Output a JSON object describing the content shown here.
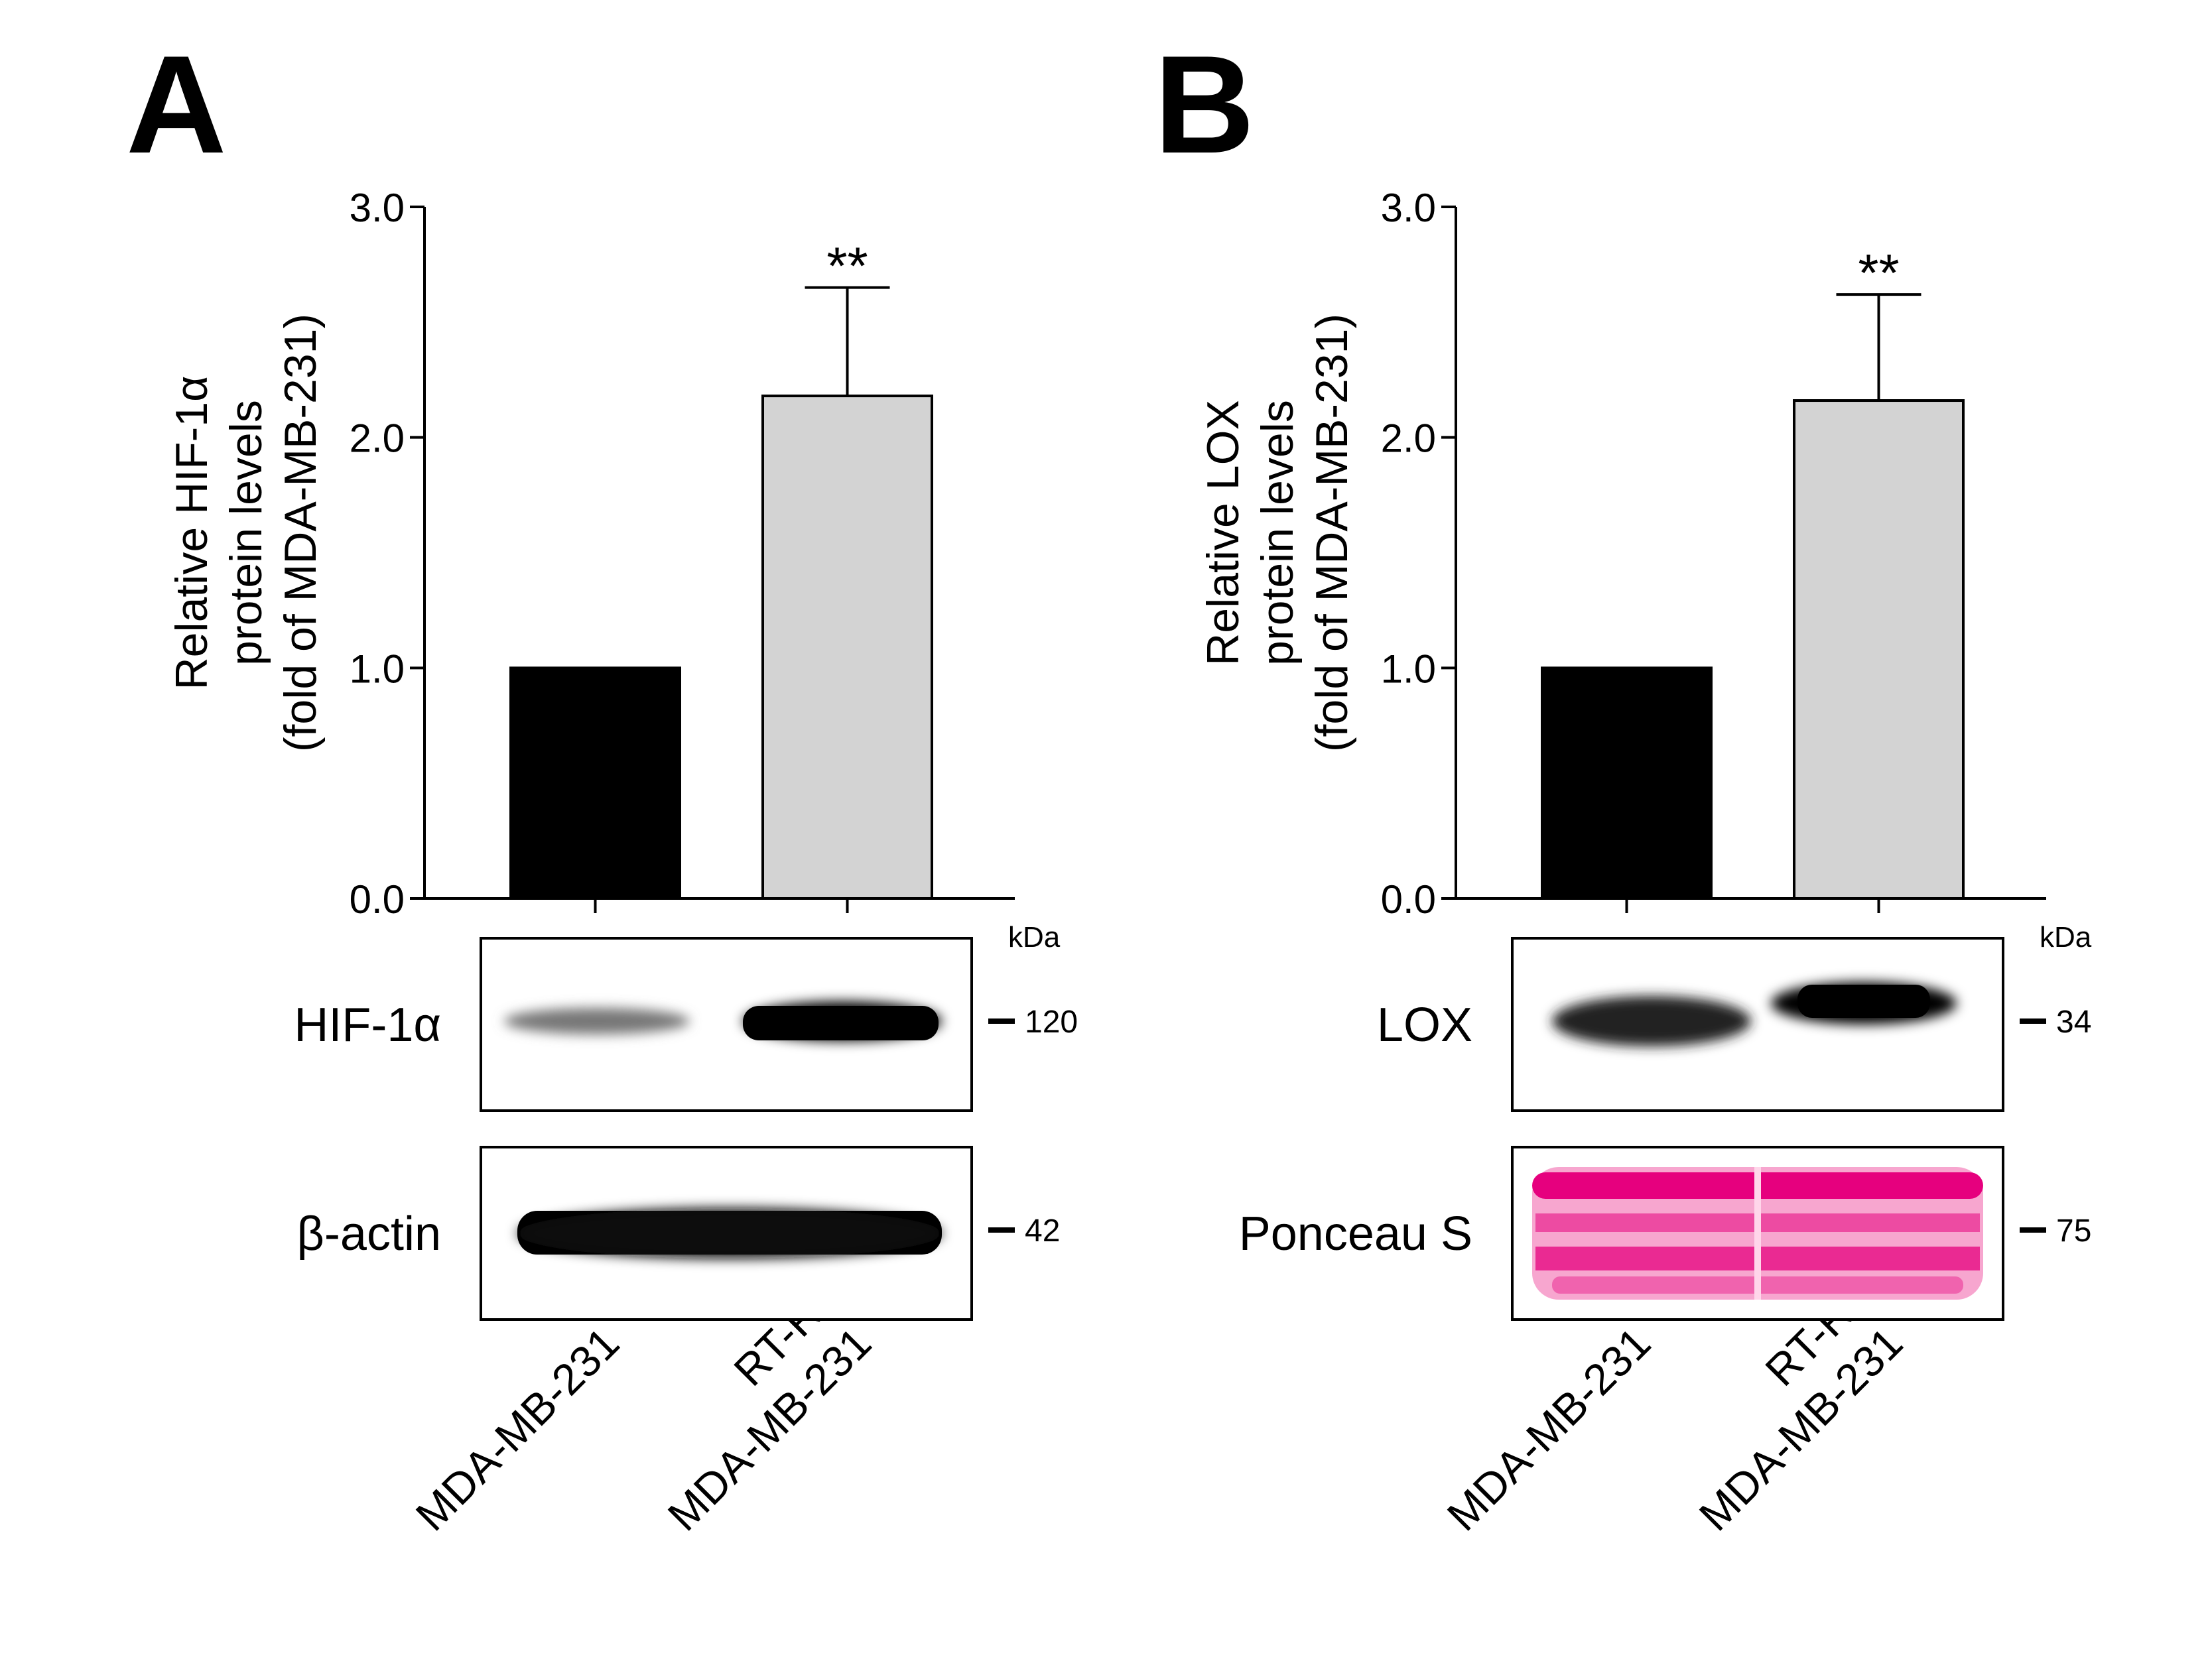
{
  "chart_data": [
    {
      "panel": "A",
      "type": "bar",
      "ylabel_lines": [
        "Relative HIF-1α",
        "protein levels",
        "(fold of MDA-MB-231)"
      ],
      "yticks": [
        "0.0",
        "1.0",
        "2.0",
        "3.0"
      ],
      "ylim": [
        0,
        3.0
      ],
      "categories": [
        "MDA-MB-231",
        "RT-R-MDA-MB-231"
      ],
      "category_lines": [
        [
          "MDA-MB-231"
        ],
        [
          "RT-R-",
          "MDA-MB-231"
        ]
      ],
      "values": [
        1.0,
        2.18
      ],
      "errors": [
        0,
        0.47
      ],
      "bar_colors": [
        "#000000",
        "#d3d3d3"
      ],
      "significance": [
        "",
        "**"
      ],
      "blots": [
        {
          "label": "HIF-1α",
          "kda": "120",
          "style": "bands-grey"
        },
        {
          "label": "β-actin",
          "kda": "42",
          "style": "bands-black"
        }
      ],
      "kda_label": "kDa"
    },
    {
      "panel": "B",
      "type": "bar",
      "ylabel_lines": [
        "Relative LOX",
        "protein levels",
        "(fold of MDA-MB-231)"
      ],
      "yticks": [
        "0.0",
        "1.0",
        "2.0",
        "3.0"
      ],
      "ylim": [
        0,
        3.0
      ],
      "categories": [
        "MDA-MB-231",
        "RT-R-MDA-MB-231"
      ],
      "category_lines": [
        [
          "MDA-MB-231"
        ],
        [
          "RT-R-",
          "MDA-MB-231"
        ]
      ],
      "values": [
        1.0,
        2.16
      ],
      "errors": [
        0,
        0.46
      ],
      "bar_colors": [
        "#000000",
        "#d3d3d3"
      ],
      "significance": [
        "",
        "**"
      ],
      "blots": [
        {
          "label": "LOX",
          "kda": "34",
          "style": "bands-black"
        },
        {
          "label": "Ponceau S",
          "kda": "75",
          "style": "ponceau"
        }
      ],
      "kda_label": "kDa"
    }
  ],
  "colors": {
    "ponceau": "#e6007e",
    "ponceau_light": "#f7a6cf",
    "grey_bar": "#d3d3d3"
  }
}
